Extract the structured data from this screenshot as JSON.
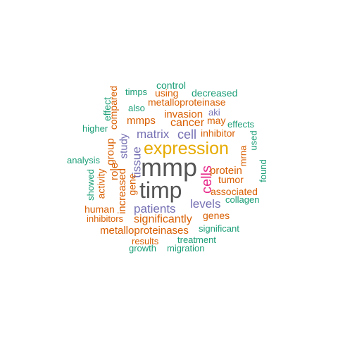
{
  "words": {
    "control": "control",
    "timps": "timps",
    "using": "using",
    "decreased": "decreased",
    "effect": "effect",
    "compared": "compared",
    "metalloproteinase": "metalloproteinase",
    "also": "also",
    "aki": "aki",
    "invasion": "invasion",
    "may": "may",
    "mmps": "mmps",
    "cancer": "cancer",
    "effects": "effects",
    "higher": "higher",
    "matrix": "matrix",
    "cell": "cell",
    "inhibitor": "inhibitor",
    "used": "used",
    "study": "study",
    "group": "group",
    "expression": "expression",
    "mrna": "mrna",
    "analysis": "analysis",
    "tissue": "tissue",
    "role": "role",
    "mmp": "mmp",
    "cells": "cells",
    "protein": "protein",
    "found": "found",
    "gene": "gene",
    "activity": "activity",
    "showed": "showed",
    "increased": "increased",
    "tumor": "tumor",
    "timp": "timp",
    "associated": "associated",
    "collagen": "collagen",
    "levels": "levels",
    "human": "human",
    "patients": "patients",
    "genes": "genes",
    "inhibitors": "inhibitors",
    "significantly": "significantly",
    "metalloproteinases": "metalloproteinases",
    "significant": "significant",
    "results": "results",
    "treatment": "treatment",
    "growth": "growth",
    "migration": "migration"
  },
  "colors": {
    "green": "#1b9e77",
    "orange": "#d95f02",
    "purple": "#7570b3",
    "pink": "#e7298a",
    "gold": "#e6ab02",
    "gray": "#555555"
  }
}
